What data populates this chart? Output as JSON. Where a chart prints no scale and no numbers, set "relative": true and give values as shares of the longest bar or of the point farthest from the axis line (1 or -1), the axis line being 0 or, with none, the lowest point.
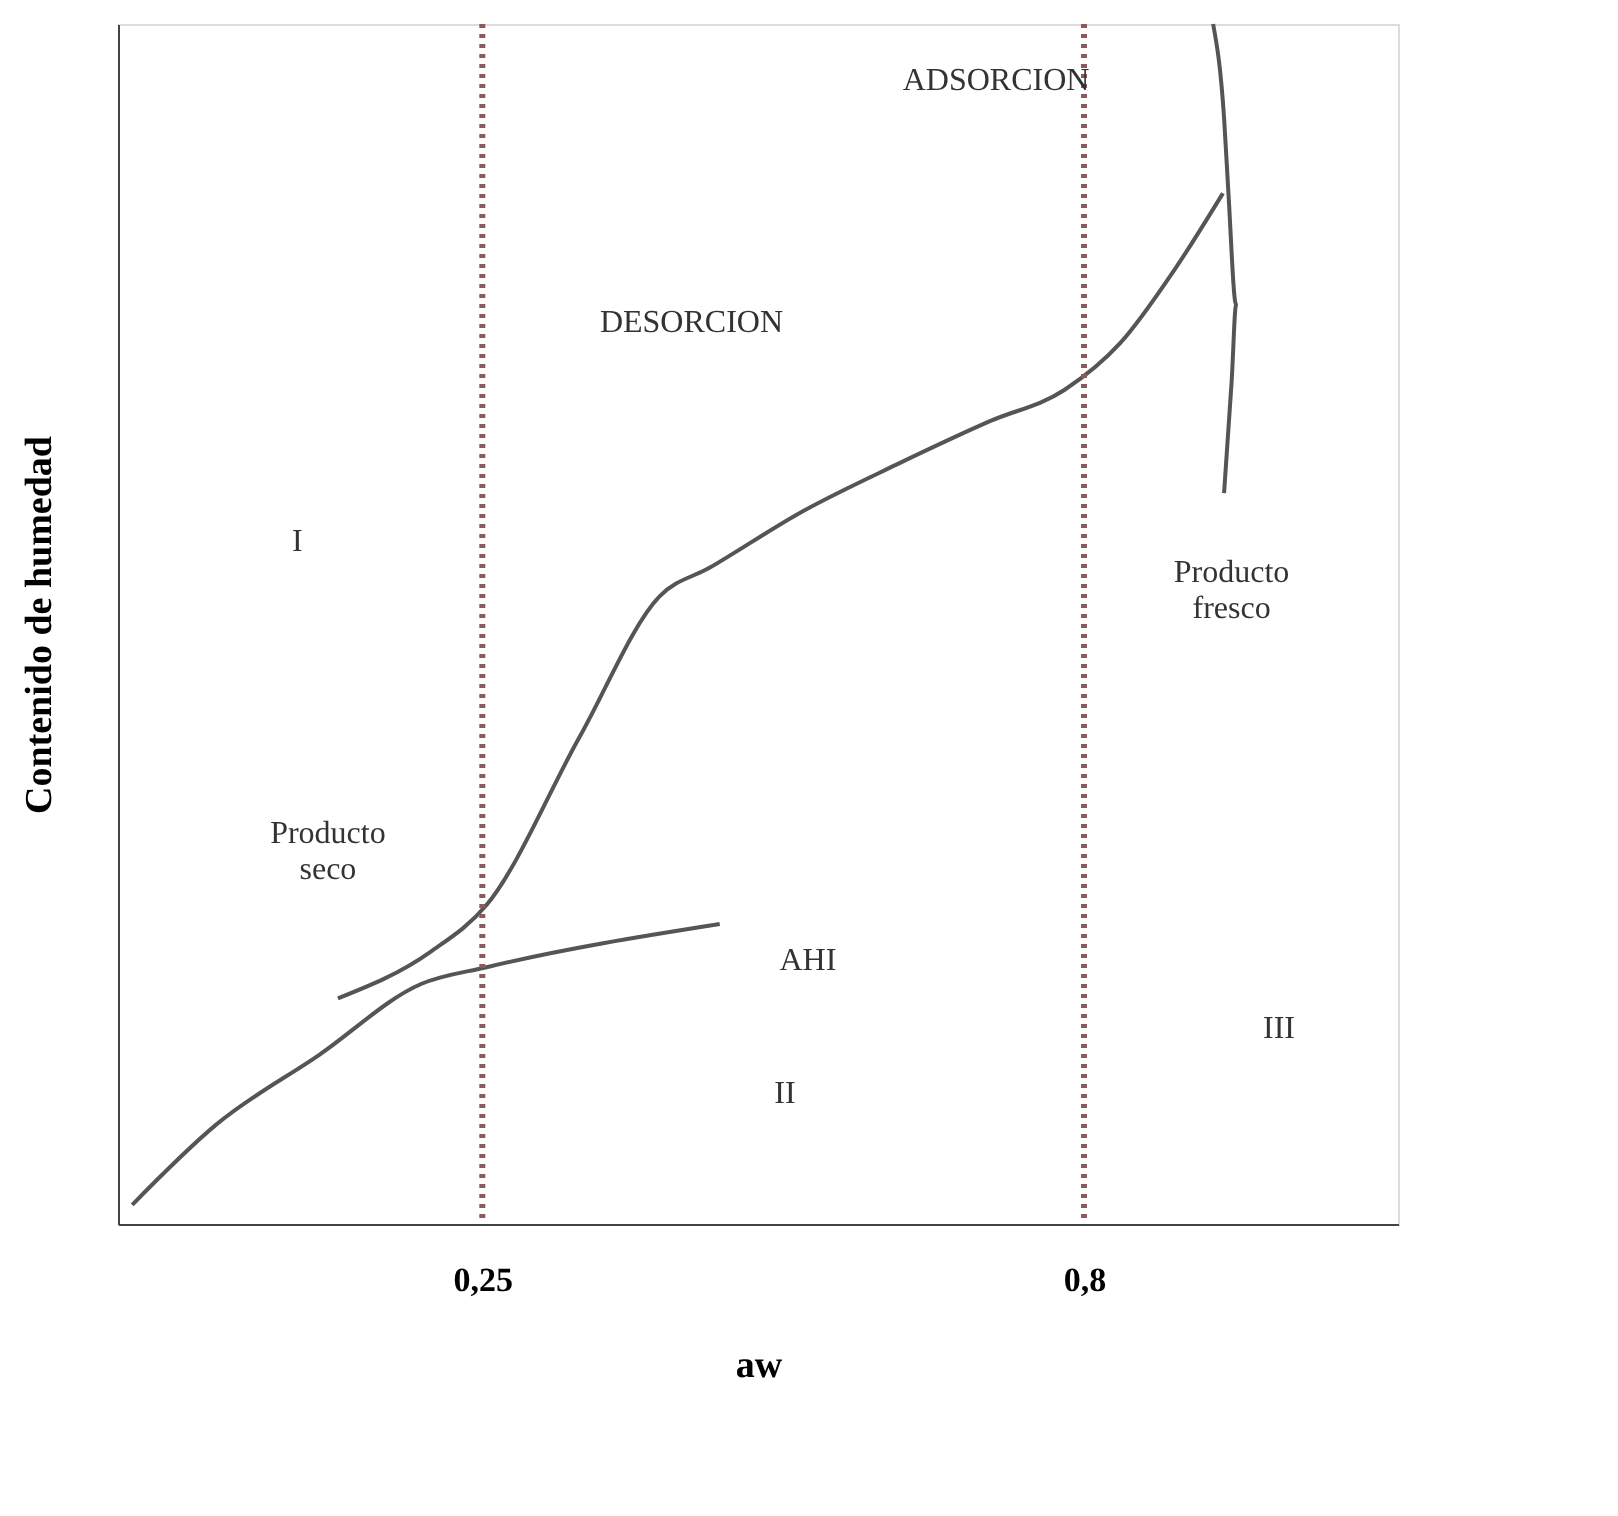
{
  "chart_data": {
    "type": "line",
    "relative": true,
    "xlabel": "aw",
    "ylabel": "Contenido de humedad",
    "xlim": [
      -0.083,
      1.087
    ],
    "xticks": [
      {
        "value": 0.25,
        "label": "0,25"
      },
      {
        "value": 0.8,
        "label": "0,8"
      }
    ],
    "line_style": "solid",
    "marker": "none",
    "series": [
      {
        "color": "#555555",
        "x": [
          0.927,
          0.884,
          0.833,
          0.782,
          0.714,
          0.629,
          0.543,
          0.458,
          0.412,
          0.339,
          0.254,
          0.203,
          0.118
        ],
        "values": [
          0.859,
          0.797,
          0.734,
          0.695,
          0.669,
          0.633,
          0.594,
          0.547,
          0.523,
          0.406,
          0.266,
          0.227,
          0.188
        ]
      },
      {
        "color": "#555555",
        "x": [
          -0.07,
          0.007,
          0.101,
          0.194,
          0.254,
          0.467
        ],
        "values": [
          0.016,
          0.083,
          0.141,
          0.2,
          0.214,
          0.25
        ]
      },
      {
        "color": "#555555",
        "x": [
          0.918,
          0.928,
          0.932,
          0.939,
          0.935,
          0.928
        ],
        "values": [
          1.0,
          0.922,
          0.859,
          0.766,
          0.703,
          0.609
        ]
      }
    ],
    "ref_lines": [
      {
        "axis": "x",
        "value": 0.25,
        "color": "#8b5a5a",
        "line_style": "dotted"
      },
      {
        "axis": "x",
        "value": 0.8,
        "color": "#8b5a5a",
        "line_style": "dotted"
      }
    ],
    "annotations": [
      "ADSORCION",
      "DESORCION",
      "Producto fresco",
      "Producto seco",
      "I",
      "AHI",
      "II",
      "III"
    ]
  }
}
